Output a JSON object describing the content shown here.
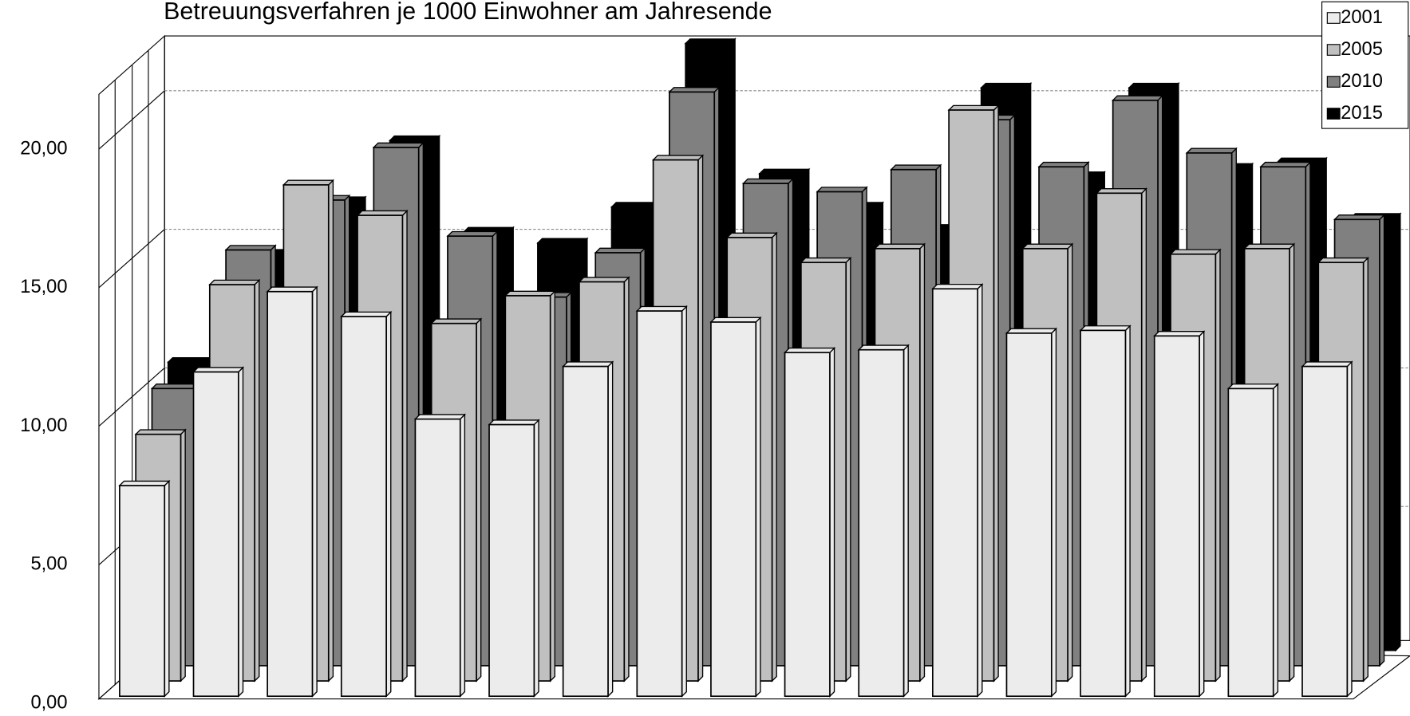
{
  "chart_data": {
    "type": "bar3d",
    "title": "Betreuungsverfahren je 1000 Einwohner am Jahresende",
    "categories": [
      null,
      null,
      null,
      null,
      null,
      null,
      null,
      null,
      null,
      null,
      null,
      null,
      null,
      null,
      null,
      null,
      null
    ],
    "series": [
      {
        "name": "2001",
        "color": "#ececec",
        "values": [
          7.6,
          11.7,
          14.6,
          13.7,
          10.0,
          9.8,
          11.9,
          13.9,
          13.5,
          12.4,
          12.5,
          14.7,
          13.1,
          13.2,
          13.0,
          11.1,
          11.9
        ]
      },
      {
        "name": "2005",
        "color": "#c0c0c0",
        "values": [
          8.9,
          14.3,
          17.9,
          16.8,
          12.9,
          13.9,
          14.4,
          18.8,
          16.0,
          15.1,
          15.6,
          20.6,
          15.6,
          17.6,
          15.4,
          15.6,
          15.1
        ]
      },
      {
        "name": "2010",
        "color": "#808080",
        "values": [
          10.0,
          15.0,
          16.8,
          18.7,
          15.5,
          13.3,
          14.9,
          20.7,
          17.4,
          17.1,
          17.9,
          19.7,
          18.0,
          20.4,
          18.5,
          18.0,
          16.1
        ]
      },
      {
        "name": "2015",
        "color": "#000000",
        "values": [
          10.4,
          14.3,
          16.2,
          18.4,
          15.1,
          14.7,
          16.0,
          21.9,
          17.2,
          16.0,
          15.2,
          20.3,
          17.1,
          20.3,
          17.4,
          17.6,
          15.6
        ]
      }
    ],
    "ylim": [
      0,
      22
    ],
    "yticks": [
      {
        "value": 0,
        "label": "0,00"
      },
      {
        "value": 5,
        "label": "5,00"
      },
      {
        "value": 10,
        "label": "10,00"
      },
      {
        "value": 15,
        "label": "15,00"
      },
      {
        "value": 20,
        "label": "20,00"
      }
    ],
    "grid": true,
    "legend": "top-right"
  }
}
